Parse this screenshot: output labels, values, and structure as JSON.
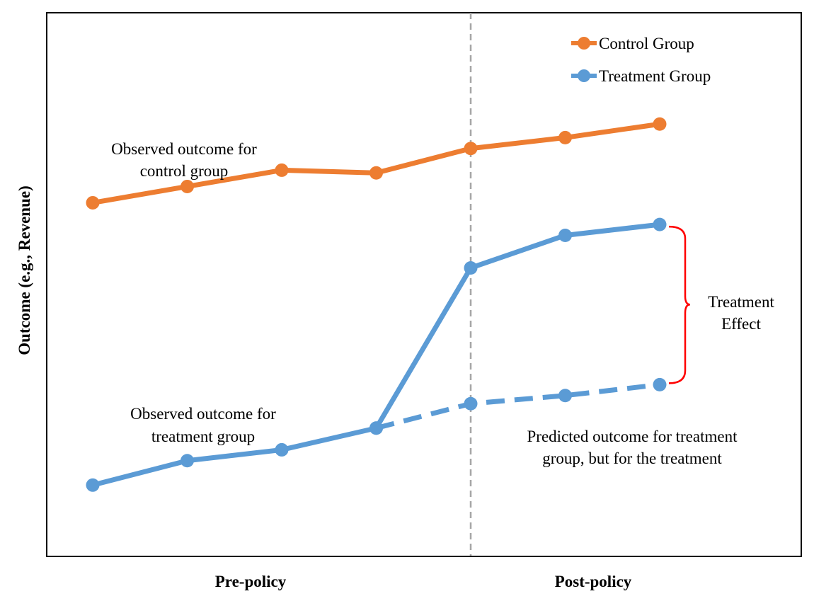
{
  "chart_data": {
    "type": "line",
    "title": "",
    "xlabel": "",
    "ylabel": "Outcome (e.g., Revenue)",
    "x": [
      1,
      2,
      3,
      4,
      5,
      6,
      7
    ],
    "period_labels": [
      "Pre-policy",
      "Post-policy"
    ],
    "policy_line_x": 5,
    "ylim": [
      0,
      100
    ],
    "grid": false,
    "legend_position": "top-right",
    "series": [
      {
        "name": "Control Group",
        "color": "#ED7D31",
        "style": "solid",
        "values": [
          65,
          68,
          71,
          70.5,
          75,
          77,
          79.5
        ]
      },
      {
        "name": "Treatment Group",
        "color": "#5B9BD5",
        "style": "solid",
        "values": [
          13,
          17.5,
          19.5,
          23.5,
          53,
          59,
          61
        ]
      },
      {
        "name": "",
        "color": "#5B9BD5",
        "style": "dashed",
        "x": [
          4,
          5,
          6,
          7
        ],
        "values": [
          23.5,
          28,
          29.5,
          31.5
        ]
      }
    ],
    "annotations": {
      "control_observed": [
        "Observed outcome for",
        "control group"
      ],
      "treatment_observed": [
        "Observed outcome for",
        "treatment group"
      ],
      "treatment_predicted": [
        "Predicted outcome for treatment",
        "group, but for the treatment"
      ],
      "treatment_effect": [
        "Treatment",
        "Effect"
      ]
    },
    "bracket_color": "#FF0000",
    "policy_line_color": "#A6A6A6"
  }
}
